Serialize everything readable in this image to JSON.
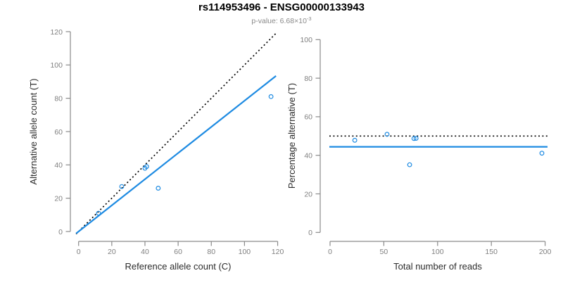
{
  "header": {
    "title": "rs114953496 - ENSG00000133943",
    "subtitle_prefix": "p-value: ",
    "subtitle_value": "6.68×10",
    "subtitle_exponent": "-3"
  },
  "colors": {
    "accent_blue": "#1E8BE2",
    "axis_gray": "#8a8a8a",
    "tick_label_gray": "#7f7f7f"
  },
  "chart_data": [
    {
      "type": "scatter",
      "name": "allele-counts",
      "xlabel": "Reference allele count (C)",
      "ylabel": "Alternative allele count (T)",
      "xlim": [
        0,
        120
      ],
      "ylim": [
        0,
        120
      ],
      "x_ticks": [
        0,
        20,
        40,
        60,
        80,
        100,
        120
      ],
      "y_ticks": [
        0,
        20,
        40,
        60,
        80,
        100,
        120
      ],
      "grid": false,
      "legend": "none",
      "points": [
        [
          12,
          11
        ],
        [
          26,
          27
        ],
        [
          40,
          38
        ],
        [
          41,
          39
        ],
        [
          48,
          26
        ],
        [
          116,
          81
        ]
      ],
      "point_color": "#1E8BE2",
      "lines": [
        {
          "name": "identity-line",
          "style": "dotted",
          "color": "#000000",
          "slope": 1,
          "intercept": 0
        },
        {
          "name": "fit-line",
          "style": "solid",
          "color": "#1E8BE2",
          "slope": 0.785,
          "intercept": 0
        }
      ]
    },
    {
      "type": "scatter",
      "name": "percentage-vs-reads",
      "xlabel": "Total number of reads",
      "ylabel": "Percentage alternative (T)",
      "xlim": [
        0,
        200
      ],
      "ylim": [
        0,
        100
      ],
      "x_ticks": [
        0,
        50,
        100,
        150,
        200
      ],
      "y_ticks": [
        0,
        20,
        40,
        60,
        80,
        100
      ],
      "grid": false,
      "legend": "none",
      "points": [
        [
          23,
          47.8
        ],
        [
          53,
          50.9
        ],
        [
          74,
          35.1
        ],
        [
          78,
          48.7
        ],
        [
          80,
          48.8
        ],
        [
          197,
          41.1
        ]
      ],
      "point_color": "#1E8BE2",
      "lines": [
        {
          "name": "expected-50-percent-line",
          "style": "dotted",
          "color": "#000000",
          "hline": 50
        },
        {
          "name": "fitted-percentage-line",
          "style": "solid",
          "color": "#1E8BE2",
          "hline": 44.4
        }
      ]
    }
  ]
}
